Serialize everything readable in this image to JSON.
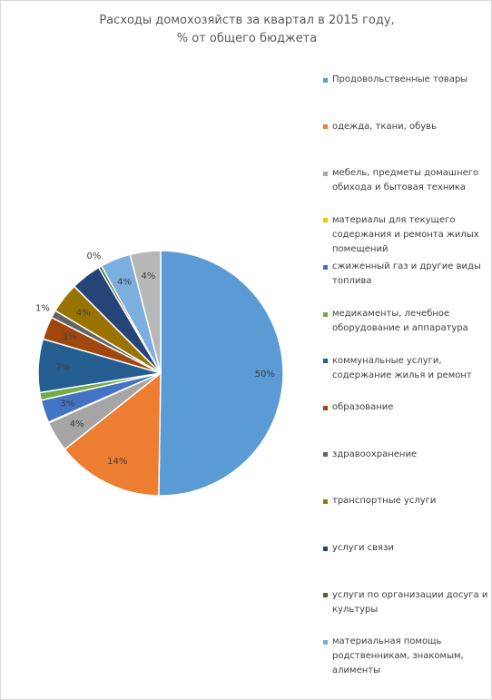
{
  "chart_data": {
    "type": "pie",
    "title": [
      "Расходы домохозяйств за квартал в 2015 году,",
      "% от общего бюджета"
    ],
    "categories": [
      "Продовольственные товары",
      "одежда, ткани, обувь",
      "мебель, предметы домашнего обихода и бытовая техника",
      "материалы для текущего содержания и ремонта жилых помещений",
      "сжиженный газ и другие виды топлива",
      "медикаменты, лечебное оборудование и аппаратура",
      "коммунальные услуги, содержание жилья и ремонт",
      "образование",
      "здравоохранение",
      "транспортные услуги",
      "услуги связи",
      "услуги по организации досуга и культуры",
      "материальная помощь родственникам, знакомым, алименты",
      null
    ],
    "values": [
      50,
      14,
      4,
      0.1,
      3,
      1,
      7,
      3,
      1,
      4,
      4,
      0.4,
      4,
      4
    ],
    "value_labels": [
      "50%",
      "14%",
      "4%",
      null,
      "3%",
      null,
      "7%",
      "3%",
      "1%",
      "4%",
      null,
      "0%",
      "4%",
      "4%"
    ],
    "colors": [
      "#5b9bd5",
      "#ed7d31",
      "#a5a5a5",
      "#ffc000",
      "#4472c4",
      "#70ad47",
      "#255e91",
      "#9e480e",
      "#636363",
      "#997300",
      "#264478",
      "#43682b",
      "#7cafdd",
      "#b7b7b7"
    ],
    "legend": "right"
  }
}
